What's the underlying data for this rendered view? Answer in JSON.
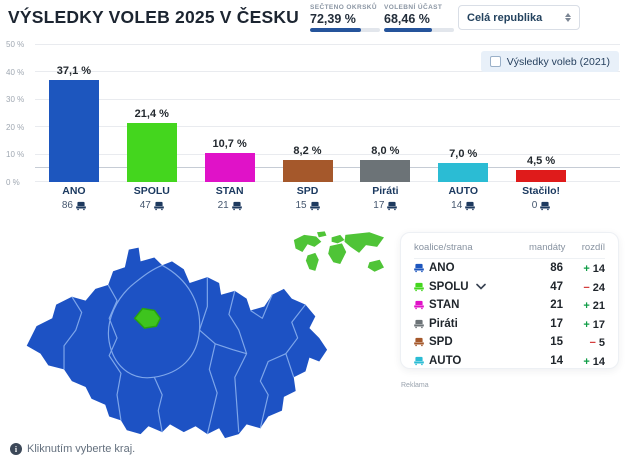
{
  "header": {
    "title": "VÝSLEDKY VOLEB 2025 V ČESKU",
    "stats": [
      {
        "label": "SEČTENO OKRSKŮ",
        "value": "72,39 %",
        "percent": 72.39
      },
      {
        "label": "VOLEBNÍ ÚČAST",
        "value": "68,46 %",
        "percent": 68.46
      }
    ],
    "region_select": {
      "value": "Celá republika"
    }
  },
  "chart": {
    "legend_toggle_label": "Výsledky voleb (2021)"
  },
  "chart_data": {
    "type": "bar",
    "categories": [
      "ANO",
      "SPOLU",
      "STAN",
      "SPD",
      "Piráti",
      "AUTO",
      "Stačilo!"
    ],
    "values": [
      37.1,
      21.4,
      10.7,
      8.2,
      8.0,
      7.0,
      4.5
    ],
    "value_labels": [
      "37,1 %",
      "21,4 %",
      "10,7 %",
      "8,2 %",
      "8,0 %",
      "7,0 %",
      "4,5 %"
    ],
    "seats": [
      86,
      47,
      21,
      15,
      17,
      14,
      0
    ],
    "colors": [
      "#1d56be",
      "#44d61e",
      "#e012c8",
      "#a5582b",
      "#6c7377",
      "#2bbcd4",
      "#df1b1b"
    ],
    "title": "",
    "xlabel": "",
    "ylabel": "",
    "ylim": [
      0,
      50
    ],
    "yticks": [
      "50 %",
      "40 %",
      "30 %",
      "20 %",
      "10 %",
      "0 %"
    ],
    "threshold_percent": 5,
    "grid": true
  },
  "table": {
    "headers": [
      "koalice/strana",
      "mandáty",
      "rozdíl"
    ],
    "rows": [
      {
        "party": "ANO",
        "color": "#1d56be",
        "mandates": 86,
        "diff_sign": "+",
        "diff": 14
      },
      {
        "party": "SPOLU",
        "color": "#44d61e",
        "mandates": 47,
        "diff_sign": "−",
        "diff": 24
      },
      {
        "party": "STAN",
        "color": "#e012c8",
        "mandates": 21,
        "diff_sign": "+",
        "diff": 21
      },
      {
        "party": "Piráti",
        "color": "#6c7377",
        "mandates": 17,
        "diff_sign": "+",
        "diff": 17
      },
      {
        "party": "SPD",
        "color": "#a5582b",
        "mandates": 15,
        "diff_sign": "−",
        "diff": 5
      },
      {
        "party": "AUTO",
        "color": "#2bbcd4",
        "mandates": 14,
        "diff_sign": "+",
        "diff": 14
      }
    ],
    "diff_colors": {
      "plus": "#0f9d46",
      "minus": "#d43a3a"
    }
  },
  "map": {
    "hint": "Kliknutím vyberte kraj.",
    "map_color": "#1d52c4",
    "region_border_color": "#7ea6ea",
    "selected_region_color": "#3ec41e",
    "world_icon_color": "#4fc437"
  },
  "ad_label": "Reklama"
}
